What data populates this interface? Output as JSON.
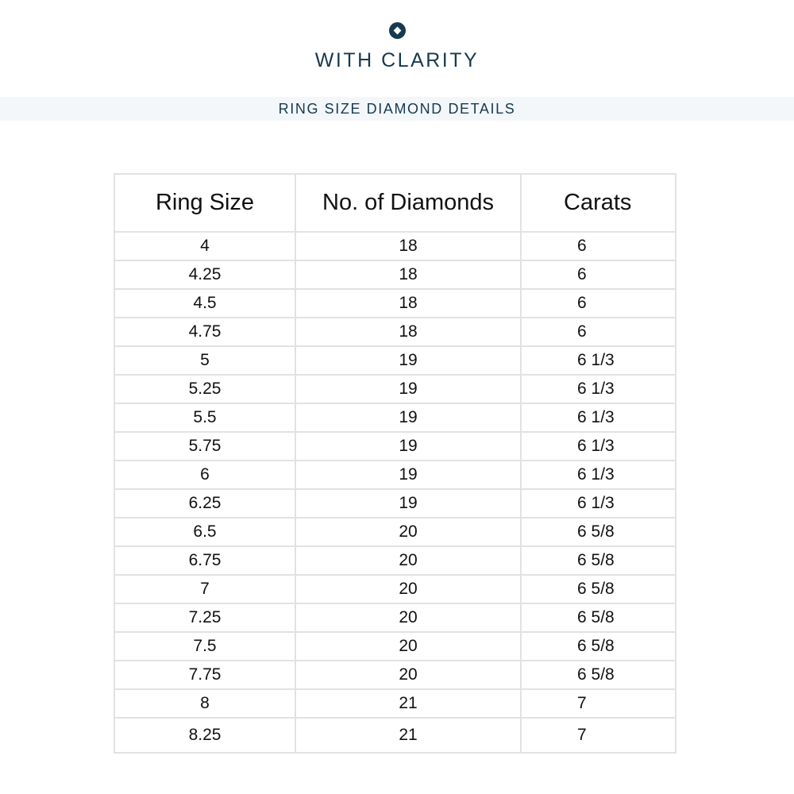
{
  "brand": {
    "name": "WITH CLARITY",
    "logo_icon": "diamond-in-circle-icon",
    "color": "#163a4f"
  },
  "banner": {
    "title": "RING SIZE DIAMOND DETAILS"
  },
  "table": {
    "headers": [
      "Ring Size",
      "No. of Diamonds",
      "Carats"
    ],
    "rows": [
      [
        "4",
        "18",
        "6"
      ],
      [
        "4.25",
        "18",
        "6"
      ],
      [
        "4.5",
        "18",
        "6"
      ],
      [
        "4.75",
        "18",
        "6"
      ],
      [
        "5",
        "19",
        "6 1/3"
      ],
      [
        "5.25",
        "19",
        "6 1/3"
      ],
      [
        "5.5",
        "19",
        "6 1/3"
      ],
      [
        "5.75",
        "19",
        "6 1/3"
      ],
      [
        "6",
        "19",
        "6 1/3"
      ],
      [
        "6.25",
        "19",
        "6 1/3"
      ],
      [
        "6.5",
        "20",
        "6 5/8"
      ],
      [
        "6.75",
        "20",
        "6 5/8"
      ],
      [
        "7",
        "20",
        "6 5/8"
      ],
      [
        "7.25",
        "20",
        "6 5/8"
      ],
      [
        "7.5",
        "20",
        "6 5/8"
      ],
      [
        "7.75",
        "20",
        "6 5/8"
      ],
      [
        "8",
        "21",
        "7"
      ],
      [
        "8.25",
        "21",
        "7"
      ]
    ]
  }
}
